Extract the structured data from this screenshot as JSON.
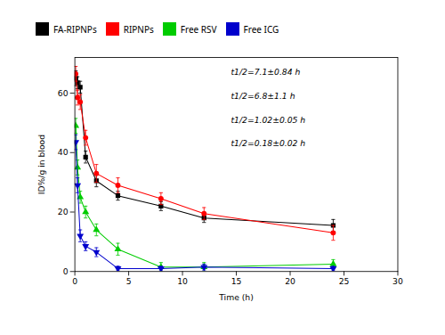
{
  "chart_data": {
    "type": "line",
    "xlabel": "Time (h)",
    "ylabel": "ID%/g in blood",
    "xlim": [
      0,
      30
    ],
    "ylim": [
      0,
      72
    ],
    "xticks": [
      0,
      5,
      10,
      15,
      20,
      25,
      30
    ],
    "yticks": [
      0,
      20,
      40,
      60
    ],
    "grid": false,
    "legend": "top",
    "x": [
      0.083,
      0.25,
      0.5,
      1.0,
      2.0,
      4.0,
      8.0,
      12.0,
      24.0
    ],
    "series": [
      {
        "name": "FA-RIPNPs",
        "color": "#000000",
        "marker": "square",
        "values": [
          65.0,
          63.5,
          62.0,
          38.5,
          30.5,
          25.5,
          22.0,
          18.0,
          15.5
        ],
        "yerr": [
          2.5,
          2.0,
          2.0,
          2.0,
          2.0,
          1.5,
          1.5,
          1.5,
          2.0
        ]
      },
      {
        "name": "RIPNPs",
        "color": "#ff0000",
        "marker": "circle",
        "values": [
          66.5,
          58.5,
          57.0,
          45.0,
          33.0,
          29.0,
          24.5,
          19.5,
          13.0
        ],
        "yerr": [
          2.5,
          2.5,
          2.5,
          2.5,
          3.0,
          2.5,
          2.0,
          2.0,
          2.5
        ]
      },
      {
        "name": "Free RSV",
        "color": "#00cc00",
        "marker": "triangle-up",
        "values": [
          49.0,
          35.0,
          25.0,
          20.0,
          14.0,
          7.5,
          1.5,
          1.5,
          2.5
        ],
        "yerr": [
          2.5,
          2.5,
          2.0,
          2.0,
          2.0,
          2.0,
          1.5,
          1.5,
          1.5
        ]
      },
      {
        "name": "Free ICG",
        "color": "#0000cc",
        "marker": "triangle-down",
        "values": [
          43.5,
          29.0,
          12.0,
          8.5,
          6.5,
          1.0,
          1.0,
          1.5,
          1.0
        ],
        "yerr": [
          2.5,
          2.5,
          2.0,
          1.5,
          1.5,
          0.8,
          0.8,
          1.0,
          0.8
        ]
      }
    ],
    "annotations": [
      {
        "text": "t1/2=7.1±0.84 h",
        "x": 14.5,
        "y": 68
      },
      {
        "text": "t1/2=6.8±1.1 h",
        "x": 14.5,
        "y": 60
      },
      {
        "text": "t1/2=1.02±0.05 h",
        "x": 14.5,
        "y": 52
      },
      {
        "text": "t1/2=0.18±0.02 h",
        "x": 14.5,
        "y": 44
      }
    ]
  }
}
